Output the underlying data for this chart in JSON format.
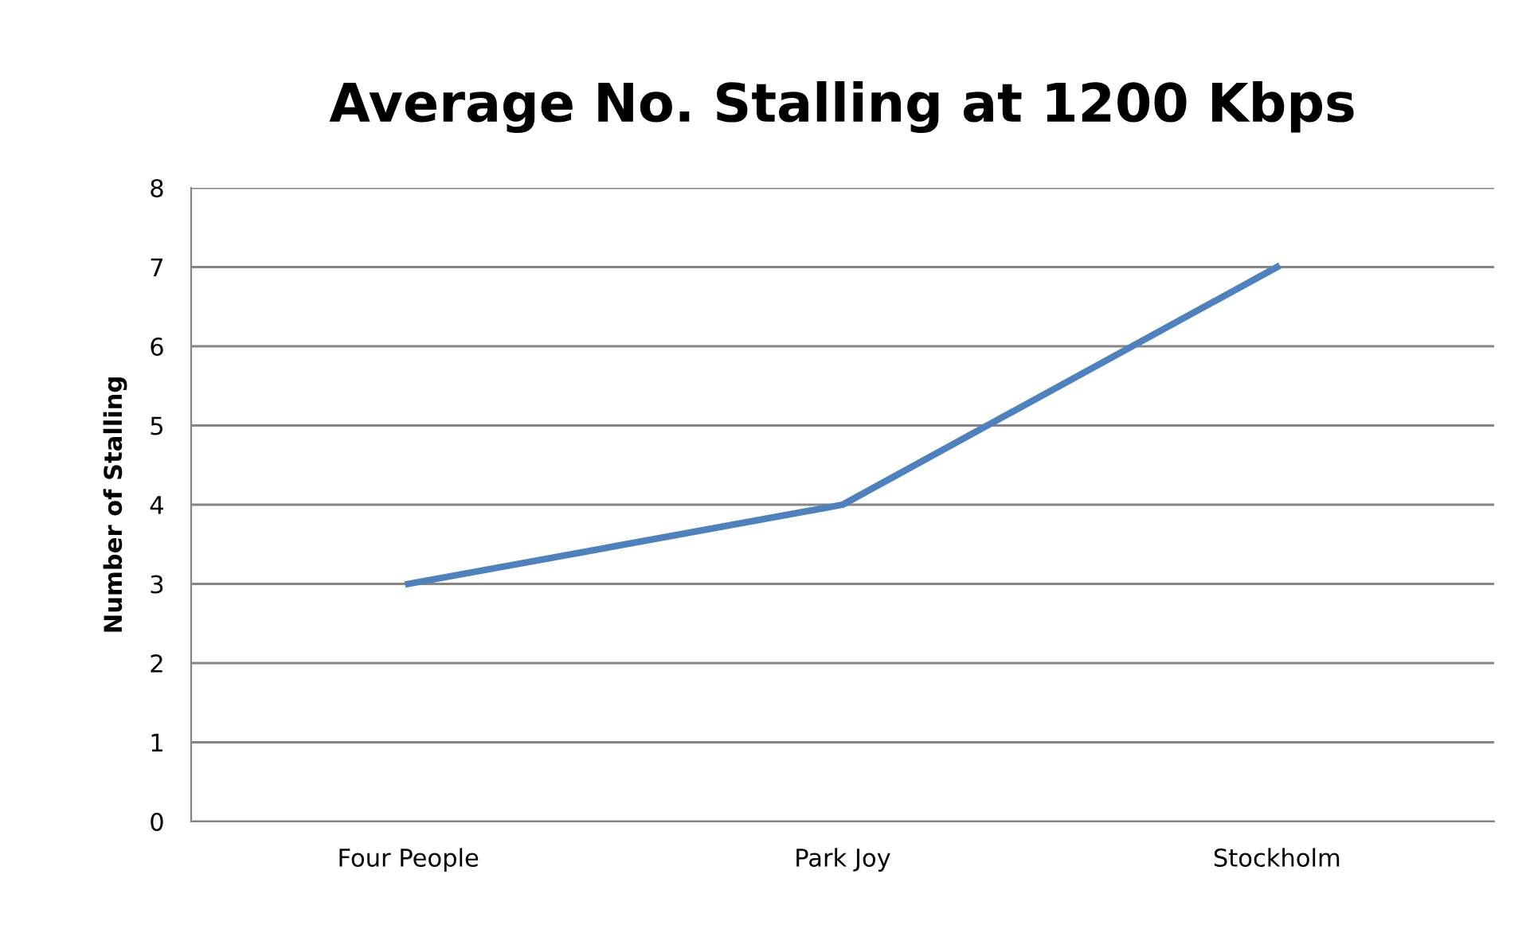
{
  "chart_data": {
    "type": "line",
    "title": "Average No. Stalling at 1200 Kbps",
    "ylabel": "Number of Stalling",
    "categories": [
      "Four People",
      "Park Joy",
      "Stockholm"
    ],
    "series": [
      {
        "color": "#4f81bd",
        "values": [
          3,
          4,
          7
        ]
      }
    ],
    "ylim": [
      0,
      8
    ],
    "yticks": [
      0,
      1,
      2,
      3,
      4,
      5,
      6,
      7,
      8
    ],
    "grid": "y",
    "marker": "none",
    "line_style": "solid"
  }
}
